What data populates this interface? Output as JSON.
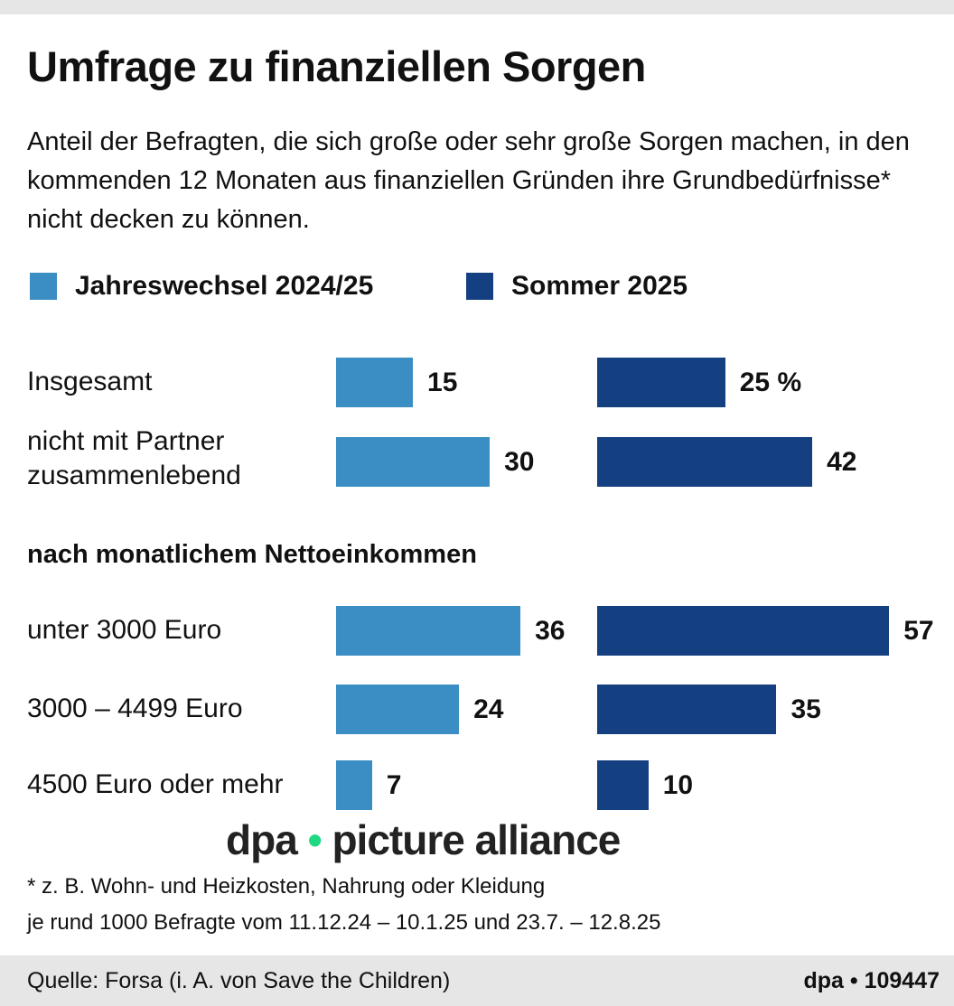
{
  "title": "Umfrage zu finanziellen Sorgen",
  "subtitle": "Anteil der Befragten, die sich große oder sehr große Sorgen machen, in den kommenden 12 Monaten aus finanziellen Gründen ihre Grundbedürfnisse* nicht decken zu können.",
  "chart_data": {
    "type": "bar",
    "orientation": "horizontal",
    "title": "Umfrage zu finanziellen Sorgen",
    "unit": "%",
    "xlim": [
      0,
      60
    ],
    "grid": false,
    "legend_placement": "top-left",
    "categories": [
      "Insgesamt",
      "nicht mit Partner zusammenlebend",
      "unter 3000 Euro",
      "3000 – 4499 Euro",
      "4500 Euro oder mehr"
    ],
    "section_header": "nach monatlichem Nettoeinkommen",
    "series": [
      {
        "name": "Jahreswechsel 2024/25",
        "color": "#3a8ec3",
        "values": [
          15,
          30,
          36,
          24,
          7
        ],
        "labels": [
          "15",
          "30",
          "36",
          "24",
          "7"
        ]
      },
      {
        "name": "Sommer 2025",
        "color": "#143f80",
        "values": [
          25,
          42,
          57,
          35,
          10
        ],
        "labels": [
          "25 %",
          "42",
          "57",
          "35",
          "10"
        ]
      }
    ]
  },
  "notes": [
    "* z. B. Wohn- und Heizkosten, Nahrung oder Kleidung",
    "je rund 1000 Befragte vom 11.12.24 – 10.1.25 und 23.7. – 12.8.25"
  ],
  "footer": {
    "source": "Quelle: Forsa (i. A. von Save the Children)",
    "credit": "dpa • 109447"
  },
  "watermark": {
    "left": "dpa",
    "dot": "•",
    "right": "picture alliance"
  }
}
